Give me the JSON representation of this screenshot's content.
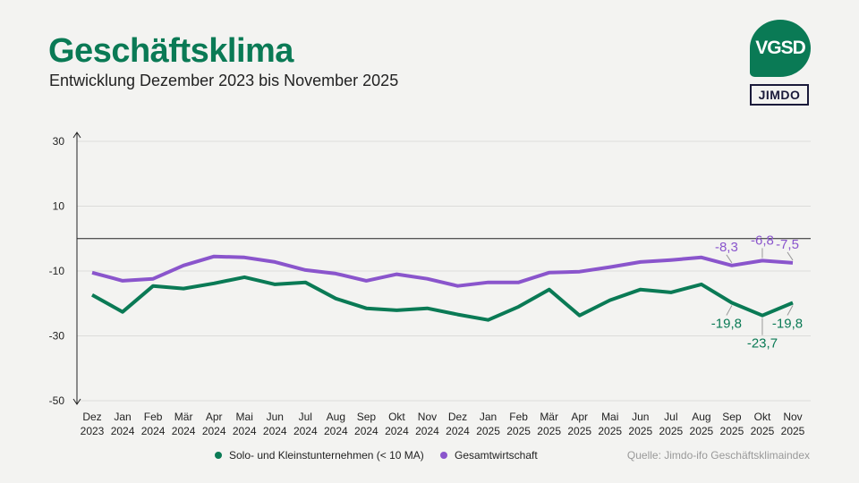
{
  "header": {
    "title": "Geschäftsklima",
    "subtitle": "Entwicklung Dezember 2023 bis November 2025"
  },
  "logos": {
    "vgsd": "VGSD",
    "jimdo": "JIMDO"
  },
  "source": "Quelle: Jimdo-ifo Geschäftsklimaindex",
  "colors": {
    "green": "#0a7a55",
    "purple": "#8a55cc"
  },
  "chart_data": {
    "type": "line",
    "title": "",
    "ylim": [
      -50,
      30
    ],
    "yticks": [
      30,
      10,
      -10,
      -30,
      -50
    ],
    "grid": true,
    "legend": "bottom",
    "categories": [
      [
        "Dez",
        "2023"
      ],
      [
        "Jan",
        "2024"
      ],
      [
        "Feb",
        "2024"
      ],
      [
        "Mär",
        "2024"
      ],
      [
        "Apr",
        "2024"
      ],
      [
        "Mai",
        "2024"
      ],
      [
        "Jun",
        "2024"
      ],
      [
        "Jul",
        "2024"
      ],
      [
        "Aug",
        "2024"
      ],
      [
        "Sep",
        "2024"
      ],
      [
        "Okt",
        "2024"
      ],
      [
        "Nov",
        "2024"
      ],
      [
        "Dez",
        "2024"
      ],
      [
        "Jan",
        "2025"
      ],
      [
        "Feb",
        "2025"
      ],
      [
        "Mär",
        "2025"
      ],
      [
        "Apr",
        "2025"
      ],
      [
        "Mai",
        "2025"
      ],
      [
        "Jun",
        "2025"
      ],
      [
        "Jul",
        "2025"
      ],
      [
        "Aug",
        "2025"
      ],
      [
        "Sep",
        "2025"
      ],
      [
        "Okt",
        "2025"
      ],
      [
        "Nov",
        "2025"
      ]
    ],
    "series": [
      {
        "name": "Solo- und Kleinstunternehmen (< 10 MA)",
        "color": "#0a7a55",
        "values": [
          -17.4,
          -22.6,
          -14.6,
          -15.4,
          -13.8,
          -11.9,
          -14.1,
          -13.5,
          -18.5,
          -21.5,
          -22.1,
          -21.5,
          -23.4,
          -25.1,
          -21.0,
          -15.7,
          -23.7,
          -19.0,
          -15.7,
          -16.6,
          -14.1,
          -19.8,
          -23.7,
          -19.8
        ],
        "labels": {
          "21": "-19,8",
          "22": "-23,7",
          "23": "-19,8"
        }
      },
      {
        "name": "Gesamtwirtschaft",
        "color": "#8a55cc",
        "values": [
          -10.5,
          -13.0,
          -12.4,
          -8.3,
          -5.5,
          -5.8,
          -7.2,
          -9.7,
          -10.8,
          -13.0,
          -11.0,
          -12.4,
          -14.6,
          -13.5,
          -13.5,
          -10.5,
          -10.2,
          -8.8,
          -7.2,
          -6.6,
          -5.8,
          -8.3,
          -6.8,
          -7.5
        ],
        "labels": {
          "21": "-8,3",
          "22": "-6,8",
          "23": "-7,5"
        }
      }
    ]
  }
}
